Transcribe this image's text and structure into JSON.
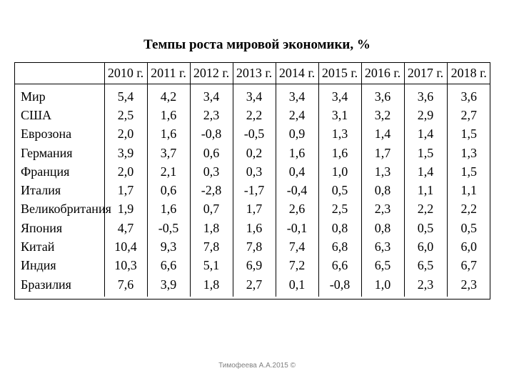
{
  "title": "Темпы роста мировой экономики, %",
  "table": {
    "corner": "",
    "years": [
      "2010 г.",
      "2011 г.",
      "2012 г.",
      "2013 г.",
      "2014 г.",
      "2015 г.",
      "2016 г.",
      "2017 г.",
      "2018 г."
    ],
    "rows": [
      {
        "country": "Мир",
        "values": [
          "5,4",
          "4,2",
          "3,4",
          "3,4",
          "3,4",
          "3,4",
          "3,6",
          "3,6",
          "3,6"
        ]
      },
      {
        "country": "США",
        "values": [
          "2,5",
          "1,6",
          "2,3",
          "2,2",
          "2,4",
          "3,1",
          "3,2",
          "2,9",
          "2,7"
        ]
      },
      {
        "country": "Еврозона",
        "values": [
          "2,0",
          "1,6",
          "-0,8",
          "-0,5",
          "0,9",
          "1,3",
          "1,4",
          "1,4",
          "1,5"
        ]
      },
      {
        "country": "Германия",
        "values": [
          "3,9",
          "3,7",
          "0,6",
          "0,2",
          "1,6",
          "1,6",
          "1,7",
          "1,5",
          "1,3"
        ]
      },
      {
        "country": "Франция",
        "values": [
          "2,0",
          "2,1",
          "0,3",
          "0,3",
          "0,4",
          "1,0",
          "1,3",
          "1,4",
          "1,5"
        ]
      },
      {
        "country": "Италия",
        "values": [
          "1,7",
          "0,6",
          "-2,8",
          "-1,7",
          "-0,4",
          "0,5",
          "0,8",
          "1,1",
          "1,1"
        ]
      },
      {
        "country": "Великобритания",
        "values": [
          "1,9",
          "1,6",
          "0,7",
          "1,7",
          "2,6",
          "2,5",
          "2,3",
          "2,2",
          "2,2"
        ]
      },
      {
        "country": "Япония",
        "values": [
          "4,7",
          "-0,5",
          "1,8",
          "1,6",
          "-0,1",
          "0,8",
          "0,8",
          "0,5",
          "0,5"
        ]
      },
      {
        "country": "Китай",
        "values": [
          "10,4",
          "9,3",
          "7,8",
          "7,8",
          "7,4",
          "6,8",
          "6,3",
          "6,0",
          "6,0"
        ]
      },
      {
        "country": "Индия",
        "values": [
          "10,3",
          "6,6",
          "5,1",
          "6,9",
          "7,2",
          "6,6",
          "6,5",
          "6,5",
          "6,7"
        ]
      },
      {
        "country": "Бразилия",
        "values": [
          "7,6",
          "3,9",
          "1,8",
          "2,7",
          "0,1",
          "-0,8",
          "1,0",
          "2,3",
          "2,3"
        ]
      }
    ]
  },
  "footer": "Тимофеева А.А.2015 ©"
}
